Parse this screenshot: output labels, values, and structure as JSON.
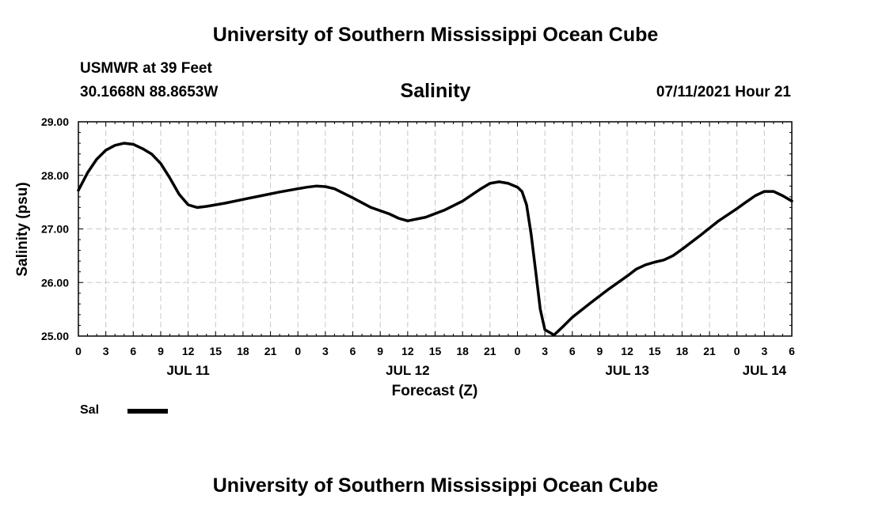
{
  "header": {
    "title": "University of Southern Mississippi Ocean Cube",
    "station": "USMWR at 39 Feet",
    "coords": "30.1668N  88.8653W",
    "subtitle": "Salinity",
    "datetime": "07/11/2021 Hour 21"
  },
  "footer": {
    "title": "University of Southern Mississippi Ocean Cube"
  },
  "legend": {
    "label": "Sal",
    "color": "#000000"
  },
  "chart_data": {
    "type": "line",
    "title": "Salinity",
    "xlabel": "Forecast (Z)",
    "ylabel": "Salinity (psu)",
    "xlim": [
      0,
      78
    ],
    "ylim": [
      25.0,
      29.0
    ],
    "grid": true,
    "x_units": "hours since 07/10/2021 21Z",
    "xticks": [
      {
        "x": 0,
        "label": "0"
      },
      {
        "x": 3,
        "label": "3"
      },
      {
        "x": 6,
        "label": "6"
      },
      {
        "x": 9,
        "label": "9"
      },
      {
        "x": 12,
        "label": "12"
      },
      {
        "x": 15,
        "label": "15"
      },
      {
        "x": 18,
        "label": "18"
      },
      {
        "x": 21,
        "label": "21"
      },
      {
        "x": 24,
        "label": "0"
      },
      {
        "x": 27,
        "label": "3"
      },
      {
        "x": 30,
        "label": "6"
      },
      {
        "x": 33,
        "label": "9"
      },
      {
        "x": 36,
        "label": "12"
      },
      {
        "x": 39,
        "label": "15"
      },
      {
        "x": 42,
        "label": "18"
      },
      {
        "x": 45,
        "label": "21"
      },
      {
        "x": 48,
        "label": "0"
      },
      {
        "x": 51,
        "label": "3"
      },
      {
        "x": 54,
        "label": "6"
      },
      {
        "x": 57,
        "label": "9"
      },
      {
        "x": 60,
        "label": "12"
      },
      {
        "x": 63,
        "label": "15"
      },
      {
        "x": 66,
        "label": "18"
      },
      {
        "x": 69,
        "label": "21"
      },
      {
        "x": 72,
        "label": "0"
      },
      {
        "x": 75,
        "label": "3"
      },
      {
        "x": 78,
        "label": "6"
      }
    ],
    "date_labels": [
      {
        "x": 12,
        "label": "JUL 11"
      },
      {
        "x": 36,
        "label": "JUL 12"
      },
      {
        "x": 60,
        "label": "JUL 13"
      },
      {
        "x": 75,
        "label": "JUL 14"
      }
    ],
    "yticks": [
      {
        "y": 25.0,
        "label": "25.00"
      },
      {
        "y": 26.0,
        "label": "26.00"
      },
      {
        "y": 27.0,
        "label": "27.00"
      },
      {
        "y": 28.0,
        "label": "28.00"
      },
      {
        "y": 29.0,
        "label": "29.00"
      }
    ],
    "series": [
      {
        "name": "Sal",
        "x": [
          0,
          1,
          2,
          3,
          4,
          5,
          6,
          7,
          8,
          9,
          10,
          11,
          12,
          13,
          14,
          16,
          18,
          20,
          22,
          24,
          25,
          26,
          27,
          28,
          30,
          32,
          34,
          35,
          36,
          38,
          40,
          42,
          44,
          45,
          46,
          47,
          48,
          48.5,
          49,
          49.5,
          50,
          50.5,
          51,
          52,
          53,
          54,
          56,
          58,
          60,
          61,
          62,
          63,
          64,
          65,
          66,
          68,
          70,
          72,
          73,
          74,
          75,
          76,
          77,
          78
        ],
        "values": [
          27.72,
          28.05,
          28.3,
          28.47,
          28.56,
          28.6,
          28.58,
          28.5,
          28.4,
          28.22,
          27.95,
          27.65,
          27.45,
          27.4,
          27.42,
          27.48,
          27.55,
          27.62,
          27.69,
          27.75,
          27.78,
          27.8,
          27.79,
          27.75,
          27.58,
          27.4,
          27.28,
          27.2,
          27.15,
          27.22,
          27.35,
          27.52,
          27.75,
          27.85,
          27.88,
          27.85,
          27.78,
          27.7,
          27.45,
          26.9,
          26.2,
          25.5,
          25.12,
          25.02,
          25.18,
          25.35,
          25.62,
          25.88,
          26.12,
          26.25,
          26.33,
          26.38,
          26.42,
          26.5,
          26.62,
          26.88,
          27.15,
          27.38,
          27.5,
          27.62,
          27.7,
          27.7,
          27.62,
          27.52
        ]
      }
    ]
  }
}
